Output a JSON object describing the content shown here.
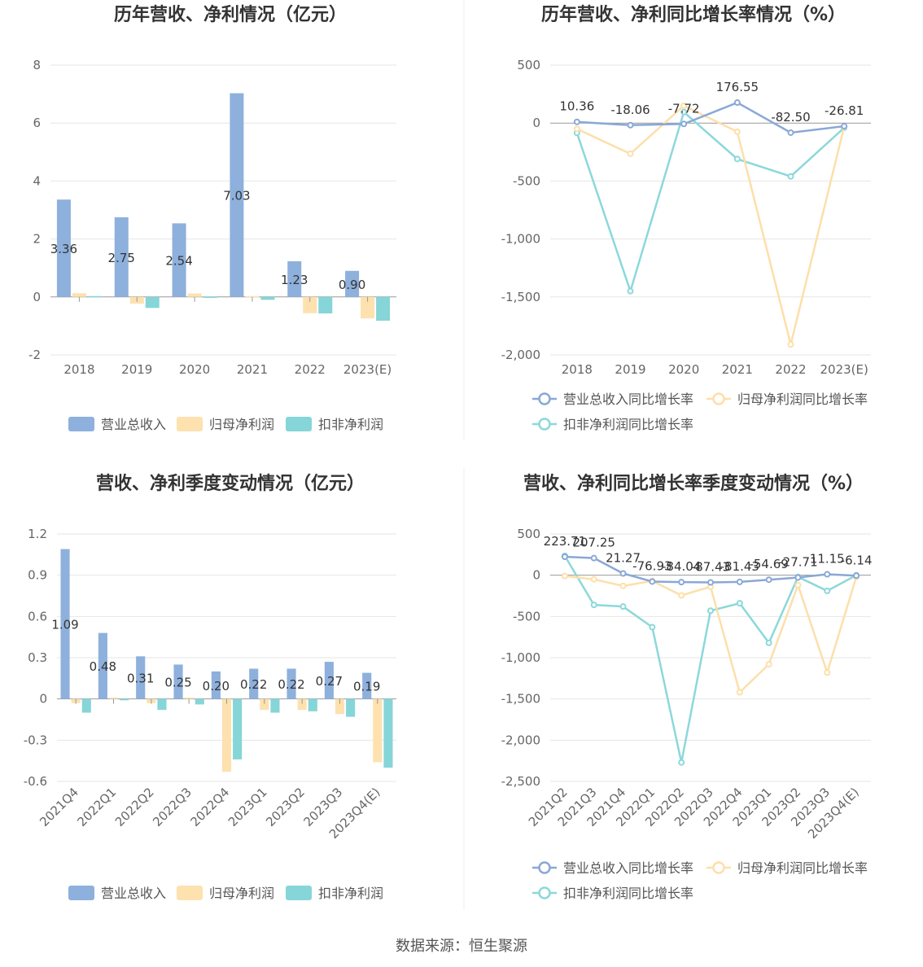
{
  "colors": {
    "revenue": "#8eb0dc",
    "parent": "#fde1af",
    "nonrecurring": "#86d5d8",
    "grid": "#e6e6e6",
    "axis": "#999999",
    "text": "#666666",
    "title": "#333333"
  },
  "footer": "数据来源：恒生聚源",
  "chart_data": [
    {
      "id": "annual-amount",
      "type": "bar",
      "title": "历年营收、净利情况（亿元）",
      "categories": [
        "2018",
        "2019",
        "2020",
        "2021",
        "2022",
        "2023(E)"
      ],
      "ylim": [
        -2,
        8
      ],
      "yticks": [
        8,
        6,
        4,
        2,
        0,
        -2
      ],
      "ytick_labels": [
        "8",
        "6",
        "4",
        "2",
        "0",
        "-2"
      ],
      "grid": true,
      "legend_position": "bottom",
      "series": [
        {
          "name": "营业总收入",
          "values": [
            3.36,
            2.75,
            2.54,
            7.03,
            1.23,
            0.9
          ],
          "labels": [
            "3.36",
            "2.75",
            "2.54",
            "7.03",
            "1.23",
            "0.90"
          ]
        },
        {
          "name": "归母净利润",
          "values": [
            0.13,
            -0.23,
            0.12,
            0.03,
            -0.56,
            -0.74
          ]
        },
        {
          "name": "扣非净利润",
          "values": [
            0.03,
            -0.38,
            0.01,
            -0.1,
            -0.57,
            -0.82
          ]
        }
      ]
    },
    {
      "id": "annual-growth",
      "type": "line",
      "title": "历年营收、净利同比增长率情况（%）",
      "categories": [
        "2018",
        "2019",
        "2020",
        "2021",
        "2022",
        "2023(E)"
      ],
      "ylim": [
        -2000,
        500
      ],
      "yticks": [
        500,
        0,
        -500,
        -1000,
        -1500,
        -2000
      ],
      "ytick_labels": [
        "500",
        "0",
        "-500",
        "-1,000",
        "-1,500",
        "-2,000"
      ],
      "grid": true,
      "legend_position": "bottom",
      "series": [
        {
          "name": "营业总收入同比增长率",
          "values": [
            10.36,
            -18.06,
            -7.72,
            176.55,
            -82.5,
            -26.81
          ],
          "labels": [
            "10.36",
            "-18.06",
            "-7.72",
            "176.55",
            "-82.50",
            "-26.81"
          ]
        },
        {
          "name": "归母净利润同比增长率",
          "values": [
            -50,
            -265,
            150,
            -75,
            -1910,
            -30
          ]
        },
        {
          "name": "扣非净利润同比增长率",
          "values": [
            -85,
            -1450,
            95,
            -310,
            -460,
            -40
          ]
        }
      ]
    },
    {
      "id": "quarter-amount",
      "type": "bar",
      "title": "营收、净利季度变动情况（亿元）",
      "categories": [
        "2021Q4",
        "2022Q1",
        "2022Q2",
        "2022Q3",
        "2022Q4",
        "2023Q1",
        "2023Q2",
        "2023Q3",
        "2023Q4(E)"
      ],
      "ylim": [
        -0.6,
        1.2
      ],
      "yticks": [
        1.2,
        0.9,
        0.6,
        0.3,
        0,
        -0.3,
        -0.6
      ],
      "ytick_labels": [
        "1.2",
        "0.9",
        "0.6",
        "0.3",
        "0",
        "-0.3",
        "-0.6"
      ],
      "grid": true,
      "legend_position": "bottom",
      "series": [
        {
          "name": "营业总收入",
          "values": [
            1.09,
            0.48,
            0.31,
            0.25,
            0.2,
            0.22,
            0.22,
            0.27,
            0.19
          ],
          "labels": [
            "1.09",
            "0.48",
            "0.31",
            "0.25",
            "0.20",
            "0.22",
            "0.22",
            "0.27",
            "0.19"
          ]
        },
        {
          "name": "归母净利润",
          "values": [
            -0.03,
            0.01,
            -0.03,
            0.01,
            -0.53,
            -0.08,
            -0.08,
            -0.11,
            -0.46
          ]
        },
        {
          "name": "扣非净利润",
          "values": [
            -0.1,
            -0.01,
            -0.08,
            -0.04,
            -0.44,
            -0.1,
            -0.09,
            -0.13,
            -0.5
          ]
        }
      ]
    },
    {
      "id": "quarter-growth",
      "type": "line",
      "title": "营收、净利同比增长率季度变动情况（%）",
      "categories": [
        "2021Q2",
        "2021Q3",
        "2021Q4",
        "2022Q1",
        "2022Q2",
        "2022Q3",
        "2022Q4",
        "2023Q1",
        "2023Q2",
        "2023Q3",
        "2023Q4(E)"
      ],
      "ylim": [
        -2500,
        500
      ],
      "yticks": [
        500,
        0,
        -500,
        -1000,
        -1500,
        -2000,
        -2500
      ],
      "ytick_labels": [
        "500",
        "0",
        "-500",
        "-1,000",
        "-1,500",
        "-2,000",
        "-2,500"
      ],
      "grid": true,
      "legend_position": "bottom",
      "series": [
        {
          "name": "营业总收入同比增长率",
          "values": [
            223.71,
            207.25,
            21.27,
            -76.93,
            -84.04,
            -87.43,
            -81.43,
            -54.69,
            -27.71,
            11.15,
            -6.14
          ],
          "labels": [
            "223.71",
            "207.25",
            "21.27",
            "-76.93",
            "-84.04",
            "-87.43",
            "-81.43",
            "-54.69",
            "-27.71",
            "11.15",
            "-6.14"
          ]
        },
        {
          "name": "归母净利润同比增长率",
          "values": [
            -10,
            -50,
            -130,
            -70,
            -245,
            -140,
            -1420,
            -1080,
            -120,
            -1180,
            -20
          ]
        },
        {
          "name": "扣非净利润同比增长率",
          "values": [
            235,
            -360,
            -380,
            -630,
            -2270,
            -430,
            -340,
            -820,
            -20,
            -190,
            0
          ]
        }
      ]
    }
  ]
}
